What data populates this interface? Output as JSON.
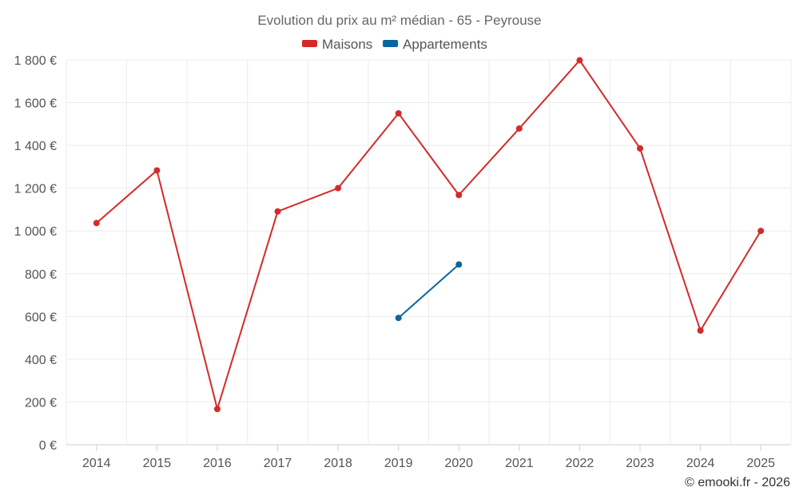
{
  "chart_data": {
    "type": "line",
    "title": "Evolution du prix au m² médian - 65 - Peyrouse",
    "categories": [
      "2014",
      "2015",
      "2016",
      "2017",
      "2018",
      "2019",
      "2020",
      "2021",
      "2022",
      "2023",
      "2024",
      "2025"
    ],
    "series": [
      {
        "name": "Maisons",
        "color": "#d42a2a",
        "values": [
          1037,
          1283,
          167,
          1091,
          1200,
          1550,
          1168,
          1479,
          1798,
          1386,
          534,
          1000
        ]
      },
      {
        "name": "Appartements",
        "color": "#0b65a0",
        "values": [
          null,
          null,
          null,
          null,
          null,
          593,
          843,
          null,
          null,
          null,
          null,
          null
        ]
      }
    ],
    "ylim": [
      0,
      1800
    ],
    "yticks": [
      0,
      200,
      400,
      600,
      800,
      1000,
      1200,
      1400,
      1600,
      1800
    ],
    "ytick_labels": [
      "0 €",
      "200 €",
      "400 €",
      "600 €",
      "800 €",
      "1 000 €",
      "1 200 €",
      "1 400 €",
      "1 600 €",
      "1 800 €"
    ],
    "grid": true,
    "legend_position": "top-center",
    "xlabel": "",
    "ylabel": ""
  },
  "credit": "© emooki.fr - 2026"
}
